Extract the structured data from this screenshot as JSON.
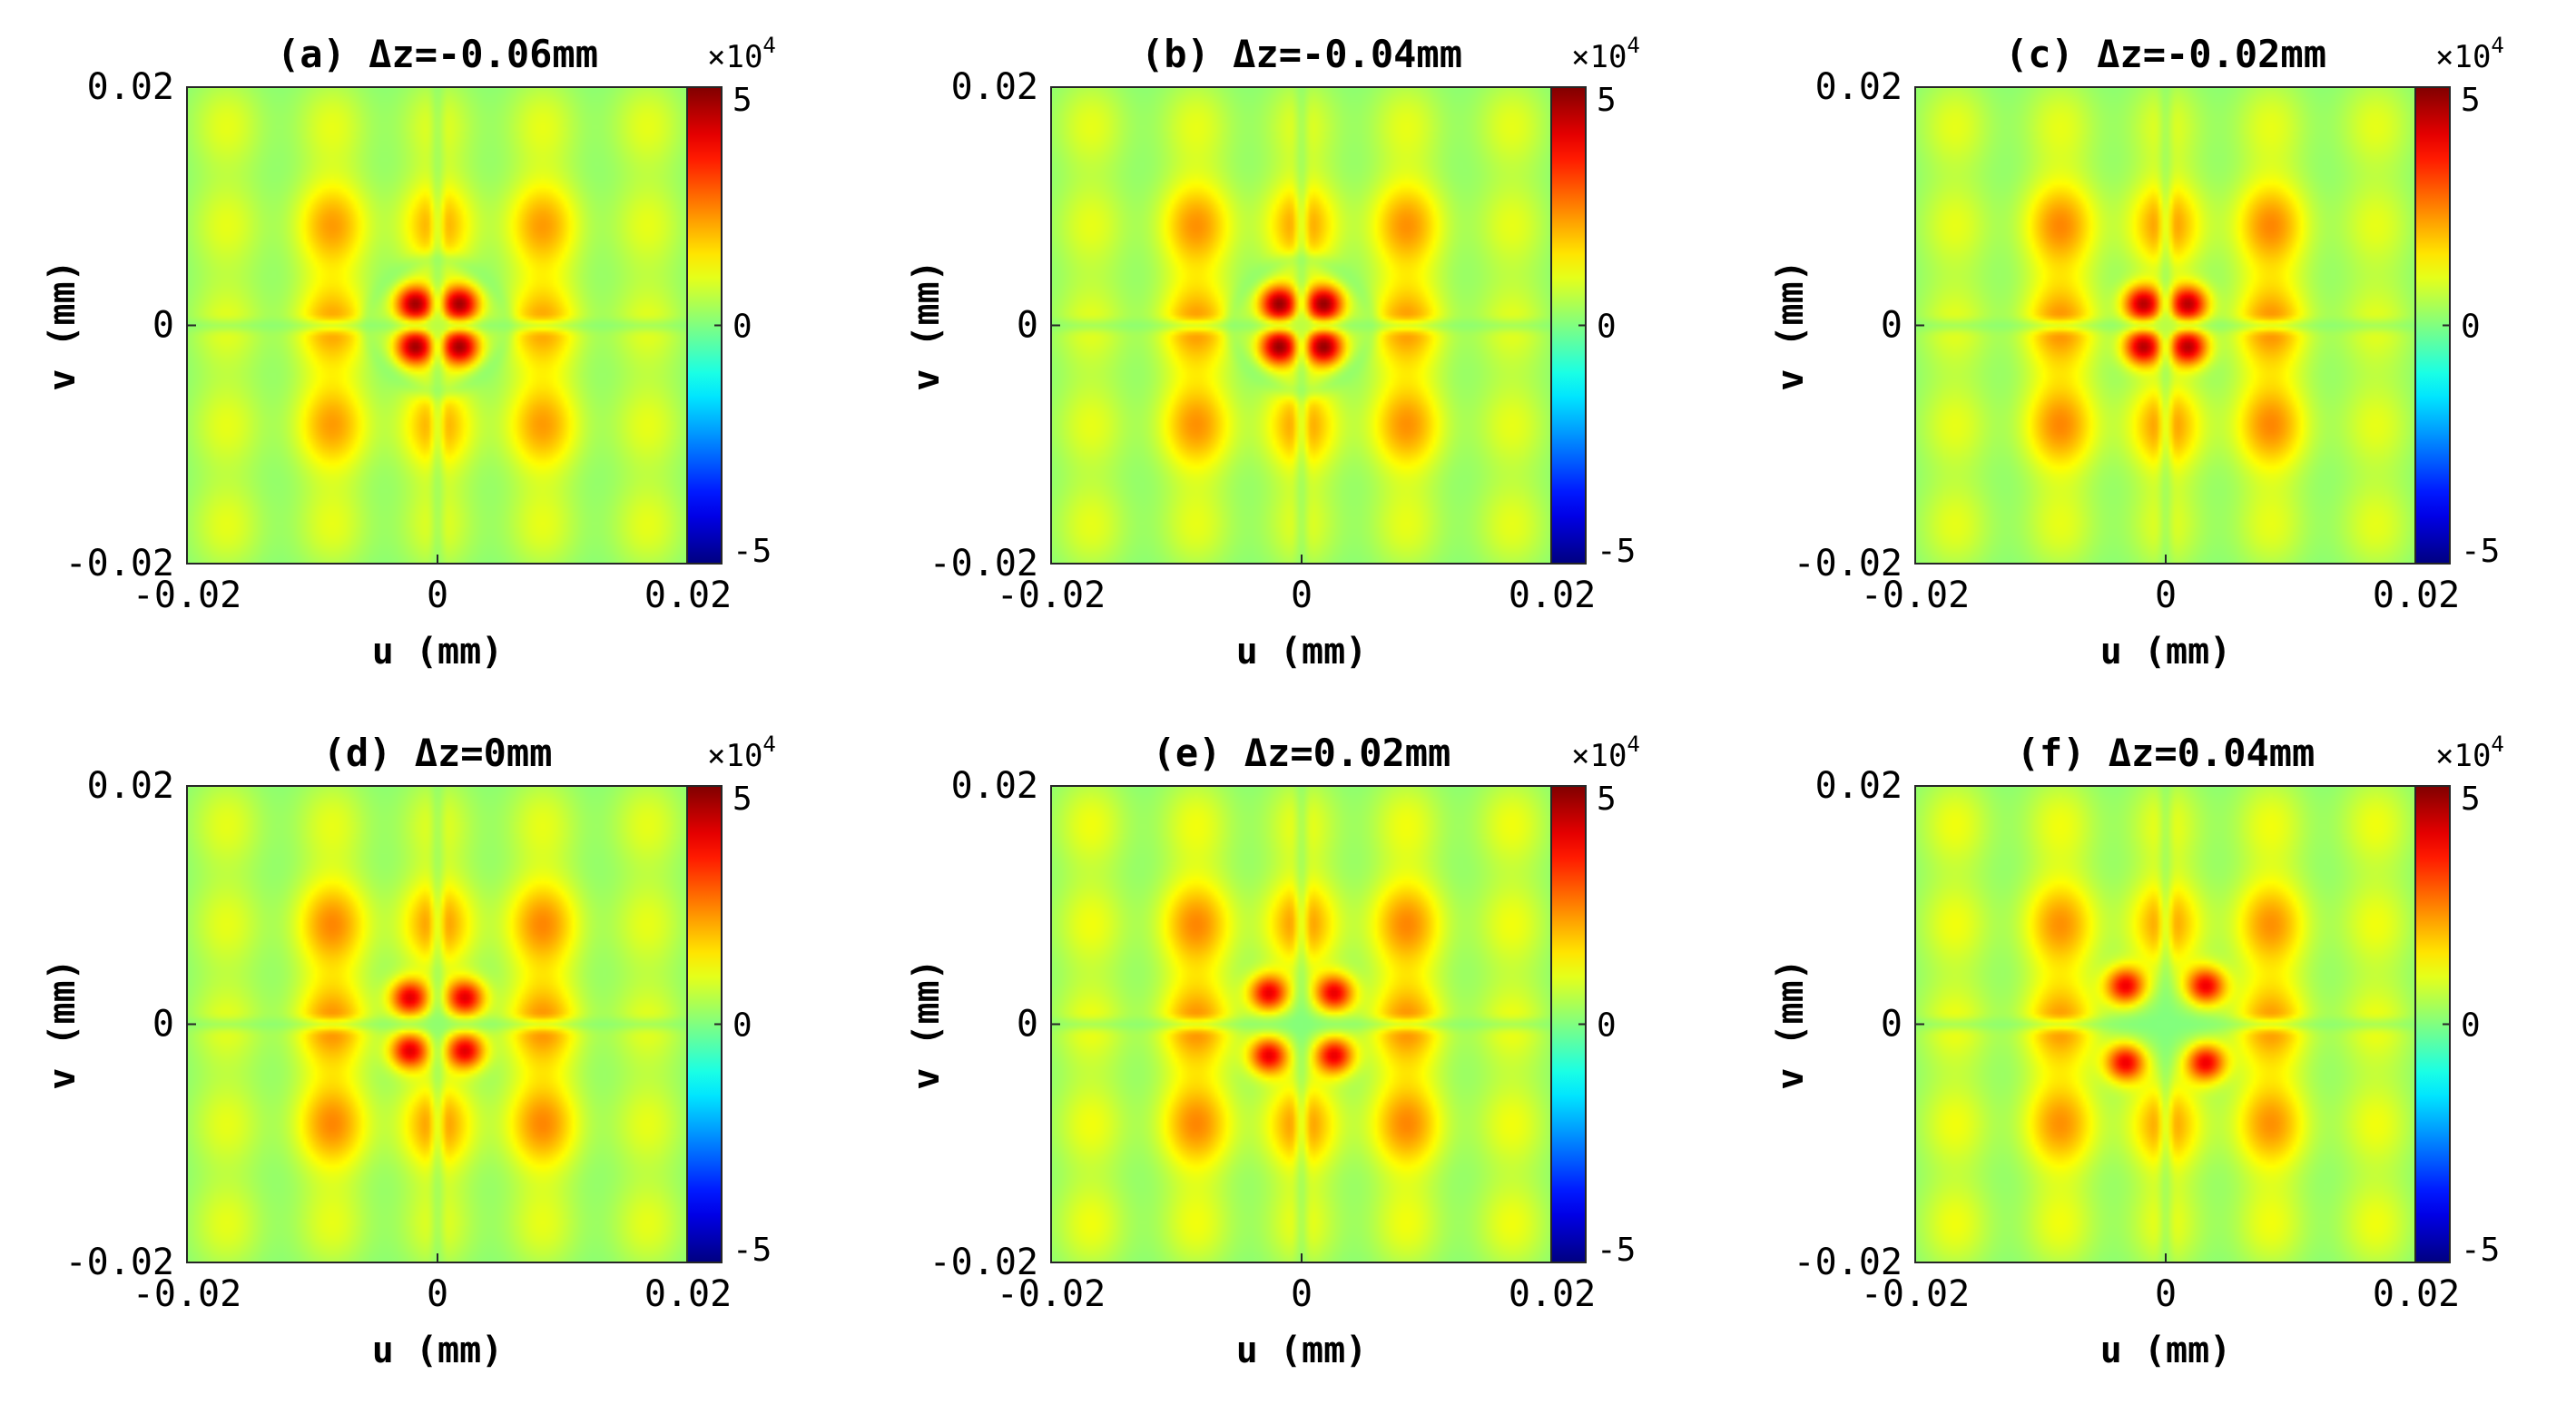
{
  "figure": {
    "colorbar": {
      "ticks": [
        "5",
        "0",
        "-5"
      ],
      "tick_values": [
        5,
        0,
        -5
      ],
      "exponent_prefix": "×10",
      "exponent": "4",
      "range": [
        -5,
        5
      ],
      "colormap": "jet"
    }
  },
  "chart_data": [
    {
      "type": "heatmap",
      "title": "(a) Δz=-0.06mm",
      "xlabel": "u (mm)",
      "ylabel": "v (mm)",
      "xlim": [
        -0.02,
        0.02
      ],
      "ylim": [
        -0.02,
        0.02
      ],
      "xticks": [
        "-0.02",
        "0",
        "0.02"
      ],
      "yticks": [
        "0.02",
        "0",
        "-0.02"
      ],
      "pattern": {
        "lobe_grid": "5x5",
        "central_lobes": 4,
        "central_value": 4.5,
        "central_offset": 0.0018,
        "outer_value": 2.2,
        "edge_value": 1.0,
        "ring": true
      }
    },
    {
      "type": "heatmap",
      "title": "(b) Δz=-0.04mm",
      "xlabel": "u (mm)",
      "ylabel": "v (mm)",
      "xlim": [
        -0.02,
        0.02
      ],
      "ylim": [
        -0.02,
        0.02
      ],
      "xticks": [
        "-0.02",
        "0",
        "0.02"
      ],
      "yticks": [
        "0.02",
        "0",
        "-0.02"
      ],
      "pattern": {
        "lobe_grid": "5x5",
        "central_lobes": 4,
        "central_value": 4.6,
        "central_offset": 0.0018,
        "outer_value": 2.3,
        "edge_value": 1.0,
        "ring": true
      }
    },
    {
      "type": "heatmap",
      "title": "(c) Δz=-0.02mm",
      "xlabel": "u (mm)",
      "ylabel": "v (mm)",
      "xlim": [
        -0.02,
        0.02
      ],
      "ylim": [
        -0.02,
        0.02
      ],
      "xticks": [
        "-0.02",
        "0",
        "0.02"
      ],
      "yticks": [
        "0.02",
        "0",
        "-0.02"
      ],
      "pattern": {
        "lobe_grid": "5x5",
        "central_lobes": 4,
        "central_value": 4.3,
        "central_offset": 0.0018,
        "outer_value": 2.4,
        "edge_value": 1.0,
        "ring": false
      }
    },
    {
      "type": "heatmap",
      "title": "(d) Δz=0mm",
      "xlabel": "u (mm)",
      "ylabel": "v (mm)",
      "xlim": [
        -0.02,
        0.02
      ],
      "ylim": [
        -0.02,
        0.02
      ],
      "xticks": [
        "-0.02",
        "0",
        "0.02"
      ],
      "yticks": [
        "0.02",
        "0",
        "-0.02"
      ],
      "pattern": {
        "lobe_grid": "5x5",
        "central_lobes": 4,
        "central_value": 3.9,
        "central_offset": 0.0022,
        "outer_value": 2.4,
        "edge_value": 1.0,
        "ring": false
      }
    },
    {
      "type": "heatmap",
      "title": "(e) Δz=0.02mm",
      "xlabel": "u (mm)",
      "ylabel": "v (mm)",
      "xlim": [
        -0.02,
        0.02
      ],
      "ylim": [
        -0.02,
        0.02
      ],
      "xticks": [
        "-0.02",
        "0",
        "0.02"
      ],
      "yticks": [
        "0.02",
        "0",
        "-0.02"
      ],
      "pattern": {
        "lobe_grid": "5x5",
        "central_lobes": 4,
        "central_value": 3.8,
        "central_offset": 0.0026,
        "outer_value": 2.4,
        "edge_value": 1.1,
        "ring": false
      }
    },
    {
      "type": "heatmap",
      "title": "(f) Δz=0.04mm",
      "xlabel": "u (mm)",
      "ylabel": "v (mm)",
      "xlim": [
        -0.02,
        0.02
      ],
      "ylim": [
        -0.02,
        0.02
      ],
      "xticks": [
        "-0.02",
        "0",
        "0.02"
      ],
      "yticks": [
        "0.02",
        "0",
        "-0.02"
      ],
      "pattern": {
        "lobe_grid": "5x5",
        "central_lobes": 4,
        "central_value": 3.7,
        "central_offset": 0.0032,
        "outer_value": 2.3,
        "edge_value": 1.1,
        "ring": false
      }
    }
  ]
}
